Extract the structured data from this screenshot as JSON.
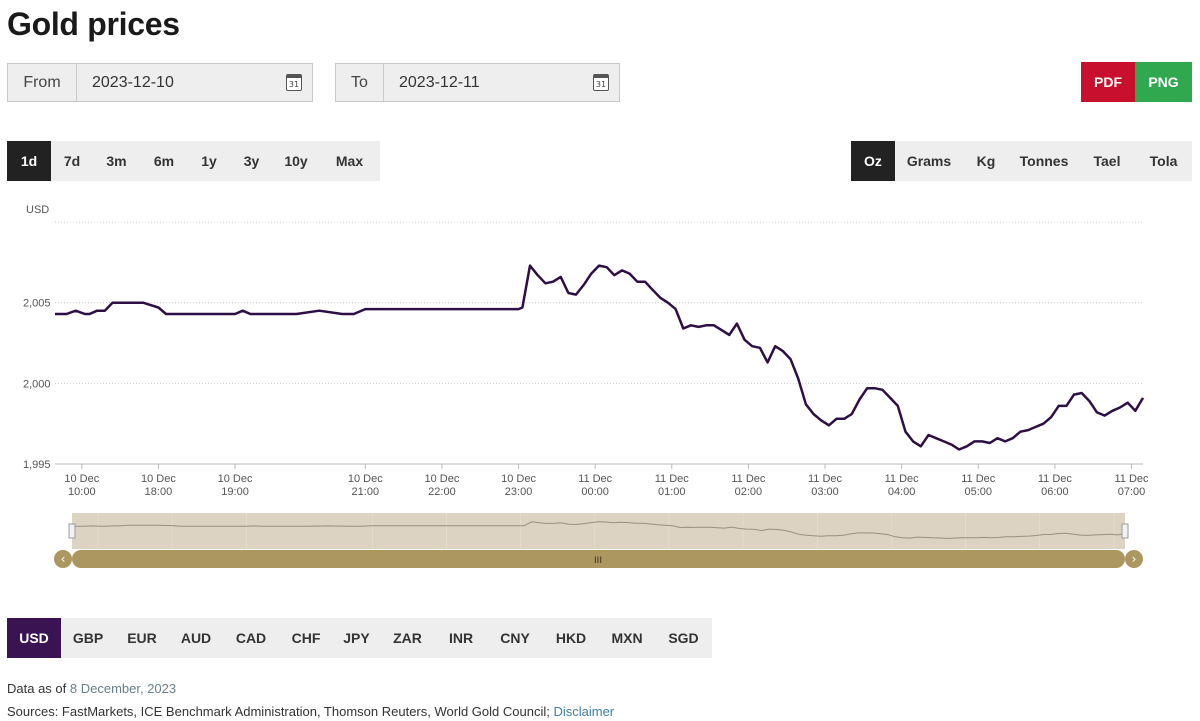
{
  "page": {
    "title": "Gold prices"
  },
  "date_range": {
    "from_label": "From",
    "from_value": "2023-12-10",
    "to_label": "To",
    "to_value": "2023-12-11",
    "calendar_icon_text": "31"
  },
  "export": {
    "pdf_label": "PDF",
    "png_label": "PNG",
    "pdf_color": "#c8102e",
    "png_color": "#2fa84f"
  },
  "timeframes": {
    "items": [
      "1d",
      "7d",
      "3m",
      "6m",
      "1y",
      "3y",
      "10y",
      "Max"
    ],
    "selected": "1d"
  },
  "units": {
    "items": [
      "Oz",
      "Grams",
      "Kg",
      "Tonnes",
      "Tael",
      "Tola"
    ],
    "selected": "Oz"
  },
  "chart_data": {
    "type": "line",
    "ylabel": "USD",
    "ylim": [
      1995,
      2010
    ],
    "yticks": [
      1995,
      2000,
      2005
    ],
    "ytick_labels": [
      "1,995",
      "2,000",
      "2,005"
    ],
    "line_color": "#2e0f45",
    "grid": "horizontal-dotted",
    "xticks": [
      {
        "t": 0.0,
        "date": "10 Dec",
        "time": "10:00"
      },
      {
        "t": 1.0,
        "date": "10 Dec",
        "time": "18:00"
      },
      {
        "t": 2.0,
        "date": "10 Dec",
        "time": "19:00"
      },
      {
        "t": 3.7,
        "date": "10 Dec",
        "time": "21:00"
      },
      {
        "t": 4.7,
        "date": "10 Dec",
        "time": "22:00"
      },
      {
        "t": 5.7,
        "date": "10 Dec",
        "time": "23:00"
      },
      {
        "t": 6.7,
        "date": "11 Dec",
        "time": "00:00"
      },
      {
        "t": 7.7,
        "date": "11 Dec",
        "time": "01:00"
      },
      {
        "t": 8.7,
        "date": "11 Dec",
        "time": "02:00"
      },
      {
        "t": 9.7,
        "date": "11 Dec",
        "time": "03:00"
      },
      {
        "t": 10.7,
        "date": "11 Dec",
        "time": "04:00"
      },
      {
        "t": 11.7,
        "date": "11 Dec",
        "time": "05:00"
      },
      {
        "t": 12.7,
        "date": "11 Dec",
        "time": "06:00"
      },
      {
        "t": 13.7,
        "date": "11 Dec",
        "time": "07:00"
      }
    ],
    "x": [
      -0.35,
      -0.2,
      -0.08,
      0.04,
      0.1,
      0.2,
      0.3,
      0.4,
      0.5,
      0.8,
      1.0,
      1.1,
      1.2,
      1.4,
      1.7,
      2.0,
      2.1,
      2.2,
      2.45,
      2.8,
      3.1,
      3.4,
      3.55,
      3.7,
      4.0,
      4.5,
      5.0,
      5.5,
      5.7,
      5.75,
      5.85,
      5.95,
      6.05,
      6.15,
      6.25,
      6.35,
      6.45,
      6.55,
      6.65,
      6.75,
      6.85,
      6.95,
      7.05,
      7.15,
      7.25,
      7.35,
      7.45,
      7.55,
      7.65,
      7.75,
      7.85,
      7.95,
      8.05,
      8.15,
      8.25,
      8.35,
      8.45,
      8.55,
      8.65,
      8.75,
      8.85,
      8.95,
      9.05,
      9.15,
      9.25,
      9.35,
      9.45,
      9.55,
      9.65,
      9.75,
      9.85,
      9.95,
      10.05,
      10.15,
      10.25,
      10.35,
      10.45,
      10.55,
      10.65,
      10.75,
      10.85,
      10.95,
      11.05,
      11.15,
      11.25,
      11.35,
      11.45,
      11.55,
      11.65,
      11.75,
      11.85,
      11.95,
      12.05,
      12.15,
      12.25,
      12.35,
      12.45,
      12.55,
      12.65,
      12.75,
      12.85,
      12.95,
      13.05,
      13.15,
      13.25,
      13.35,
      13.45,
      13.55,
      13.65,
      13.75,
      13.85
    ],
    "y": [
      2004.3,
      2004.3,
      2004.5,
      2004.3,
      2004.3,
      2004.5,
      2004.5,
      2005.0,
      2005.0,
      2005.0,
      2004.7,
      2004.3,
      2004.3,
      2004.3,
      2004.3,
      2004.3,
      2004.5,
      2004.3,
      2004.3,
      2004.3,
      2004.5,
      2004.3,
      2004.3,
      2004.6,
      2004.6,
      2004.6,
      2004.6,
      2004.6,
      2004.6,
      2004.7,
      2007.3,
      2006.7,
      2006.2,
      2006.3,
      2006.6,
      2005.6,
      2005.5,
      2006.1,
      2006.8,
      2007.3,
      2007.2,
      2006.7,
      2007.0,
      2006.8,
      2006.3,
      2006.3,
      2005.8,
      2005.3,
      2005.0,
      2004.6,
      2003.4,
      2003.6,
      2003.5,
      2003.6,
      2003.6,
      2003.3,
      2003.0,
      2003.7,
      2002.7,
      2002.3,
      2002.2,
      2001.3,
      2002.3,
      2002.0,
      2001.5,
      2000.3,
      1998.7,
      1998.1,
      1997.7,
      1997.4,
      1997.8,
      1997.8,
      1998.1,
      1999.0,
      1999.7,
      1999.7,
      1999.6,
      1999.1,
      1998.6,
      1997.0,
      1996.4,
      1996.1,
      1996.8,
      1996.6,
      1996.4,
      1996.2,
      1995.9,
      1996.1,
      1996.4,
      1996.4,
      1996.3,
      1996.6,
      1996.4,
      1996.6,
      1997.0,
      1997.1,
      1997.3,
      1997.5,
      1997.9,
      1998.6,
      1998.6,
      1999.3,
      1999.4,
      1998.9,
      1998.2,
      1998.0,
      1998.3,
      1998.5,
      1998.8,
      1998.3,
      1999.1
    ]
  },
  "navigator": {
    "fill_color": "#ddd3c2",
    "line_color": "#9a8f80",
    "bar_color": "#ad9761",
    "handle_glyph": "III",
    "left_arrow": "‹",
    "right_arrow": "›"
  },
  "currencies": {
    "items": [
      "USD",
      "GBP",
      "EUR",
      "AUD",
      "CAD",
      "CHF",
      "JPY",
      "ZAR",
      "INR",
      "CNY",
      "HKD",
      "MXN",
      "SGD"
    ],
    "selected": "USD"
  },
  "footer": {
    "data_as_of_label": "Data as of",
    "data_as_of_date": "8 December, 2023",
    "sources_text": "Sources: FastMarkets, ICE Benchmark Administration, Thomson Reuters, World Gold Council;",
    "disclaimer_label": "Disclaimer"
  }
}
